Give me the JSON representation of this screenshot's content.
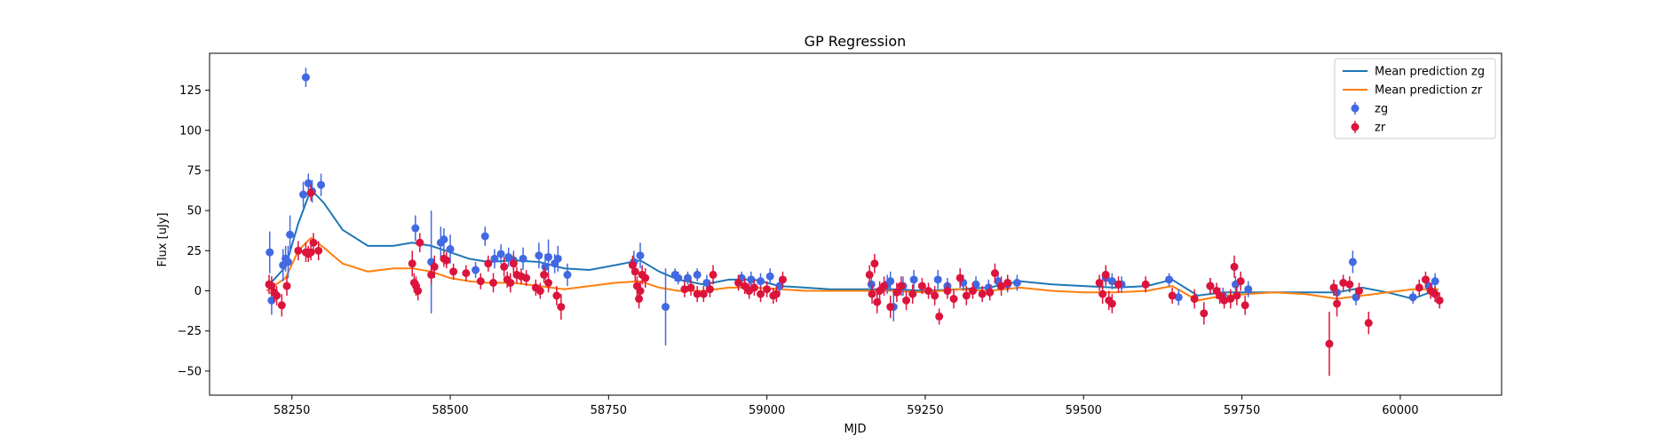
{
  "chart_data": {
    "type": "scatter",
    "title": "GP Regression",
    "xlabel": "MJD",
    "ylabel": "Flux [uJy]",
    "xlim": [
      58120,
      60160
    ],
    "ylim": [
      -65,
      148
    ],
    "xticks": [
      58250,
      58500,
      58750,
      59000,
      59250,
      59500,
      59750,
      60000
    ],
    "yticks": [
      -50,
      -25,
      0,
      25,
      50,
      75,
      100,
      125
    ],
    "grid": false,
    "legend_position": "top-right",
    "legend": [
      "Mean prediction zg",
      "Mean prediction zr",
      "zg",
      "zr"
    ],
    "colors": {
      "mean_zg": "#1f77b4",
      "mean_zr": "#ff7f0e",
      "zg": "#4169e1",
      "zr": "#dc143c"
    },
    "lines": [
      {
        "name": "Mean prediction zg",
        "x": [
          58210,
          58240,
          58260,
          58280,
          58300,
          58330,
          58370,
          58410,
          58440,
          58470,
          58500,
          58530,
          58560,
          58600,
          58640,
          58680,
          58720,
          58760,
          58800,
          58830,
          58860,
          58900,
          58940,
          58980,
          59020,
          59060,
          59100,
          59150,
          59200,
          59250,
          59300,
          59350,
          59400,
          59450,
          59500,
          59550,
          59600,
          59640,
          59680,
          59720,
          59760,
          59800,
          59850,
          59900,
          59940,
          59980,
          60020,
          60060
        ],
        "y": [
          2,
          15,
          42,
          63,
          55,
          38,
          28,
          28,
          30,
          28,
          24,
          20,
          18,
          19,
          18,
          14,
          13,
          16,
          19,
          12,
          7,
          4,
          7,
          7,
          3,
          2,
          1,
          1,
          1,
          0,
          1,
          2,
          6,
          4,
          3,
          2,
          3,
          7,
          -3,
          -1,
          -1,
          -1,
          -1,
          -1,
          2,
          -1,
          -5,
          1
        ]
      },
      {
        "name": "Mean prediction zr",
        "x": [
          58210,
          58240,
          58260,
          58280,
          58300,
          58330,
          58370,
          58410,
          58440,
          58470,
          58500,
          58530,
          58560,
          58600,
          58640,
          58680,
          58720,
          58760,
          58800,
          58830,
          58860,
          58900,
          58940,
          58980,
          59020,
          59060,
          59100,
          59150,
          59200,
          59250,
          59300,
          59350,
          59400,
          59450,
          59500,
          59550,
          59600,
          59640,
          59680,
          59720,
          59760,
          59800,
          59850,
          59900,
          59940,
          59980,
          60020,
          60060
        ],
        "y": [
          0,
          8,
          25,
          33,
          27,
          17,
          12,
          14,
          14,
          12,
          8,
          6,
          5,
          5,
          3,
          1,
          3,
          5,
          6,
          2,
          0,
          0,
          2,
          2,
          1,
          0,
          0,
          0,
          0,
          -1,
          1,
          0,
          2,
          0,
          -1,
          -1,
          0,
          3,
          -6,
          -3,
          -2,
          -1,
          -2,
          -5,
          -3,
          -1,
          1,
          1
        ]
      }
    ],
    "scatter": [
      {
        "name": "zg",
        "points": [
          [
            58215,
            24,
            13
          ],
          [
            58218,
            -6,
            9
          ],
          [
            58236,
            16,
            10
          ],
          [
            58240,
            20,
            8
          ],
          [
            58244,
            18,
            10
          ],
          [
            58247,
            35,
            12
          ],
          [
            58268,
            60,
            8
          ],
          [
            58272,
            133,
            6
          ],
          [
            58276,
            67,
            6
          ],
          [
            58282,
            62,
            7
          ],
          [
            58296,
            66,
            7
          ],
          [
            58445,
            39,
            8
          ],
          [
            58470,
            18,
            32
          ],
          [
            58485,
            30,
            10
          ],
          [
            58490,
            32,
            7
          ],
          [
            58500,
            26,
            9
          ],
          [
            58540,
            13,
            5
          ],
          [
            58555,
            34,
            6
          ],
          [
            58570,
            20,
            6
          ],
          [
            58580,
            23,
            6
          ],
          [
            58592,
            21,
            6
          ],
          [
            58600,
            19,
            6
          ],
          [
            58615,
            20,
            7
          ],
          [
            58640,
            22,
            8
          ],
          [
            58650,
            15,
            8
          ],
          [
            58655,
            21,
            11
          ],
          [
            58665,
            17,
            6
          ],
          [
            58670,
            20,
            8
          ],
          [
            58685,
            10,
            7
          ],
          [
            58790,
            18,
            7
          ],
          [
            58800,
            22,
            8
          ],
          [
            58840,
            -10,
            24
          ],
          [
            58855,
            10,
            4
          ],
          [
            58860,
            8,
            4
          ],
          [
            58875,
            8,
            4
          ],
          [
            58890,
            10,
            4
          ],
          [
            58905,
            5,
            5
          ],
          [
            58960,
            8,
            4
          ],
          [
            58975,
            7,
            5
          ],
          [
            58990,
            6,
            5
          ],
          [
            59005,
            9,
            5
          ],
          [
            59020,
            3,
            5
          ],
          [
            59165,
            4,
            5
          ],
          [
            59190,
            4,
            6
          ],
          [
            59195,
            6,
            6
          ],
          [
            59200,
            -10,
            9
          ],
          [
            59215,
            3,
            6
          ],
          [
            59232,
            7,
            6
          ],
          [
            59270,
            7,
            6
          ],
          [
            59285,
            3,
            5
          ],
          [
            59310,
            5,
            5
          ],
          [
            59330,
            4,
            5
          ],
          [
            59350,
            2,
            5
          ],
          [
            59365,
            6,
            5
          ],
          [
            59380,
            4,
            5
          ],
          [
            59395,
            5,
            5
          ],
          [
            59535,
            8,
            5
          ],
          [
            59545,
            6,
            5
          ],
          [
            59560,
            4,
            5
          ],
          [
            59635,
            7,
            4
          ],
          [
            59650,
            -4,
            5
          ],
          [
            59700,
            3,
            5
          ],
          [
            59720,
            -3,
            5
          ],
          [
            59740,
            4,
            5
          ],
          [
            59760,
            1,
            5
          ],
          [
            59900,
            -1,
            5
          ],
          [
            59925,
            18,
            7
          ],
          [
            59930,
            -4,
            5
          ],
          [
            60020,
            -4,
            4
          ],
          [
            60045,
            3,
            5
          ],
          [
            60055,
            6,
            5
          ]
        ]
      },
      {
        "name": "zr",
        "points": [
          [
            58214,
            4,
            6
          ],
          [
            58218,
            3,
            6
          ],
          [
            58222,
            -1,
            6
          ],
          [
            58226,
            -3,
            6
          ],
          [
            58234,
            -9,
            7
          ],
          [
            58242,
            3,
            6
          ],
          [
            58260,
            25,
            6
          ],
          [
            58272,
            24,
            6
          ],
          [
            58276,
            23,
            5
          ],
          [
            58280,
            24,
            5
          ],
          [
            58284,
            30,
            6
          ],
          [
            58292,
            25,
            6
          ],
          [
            58280,
            61,
            5
          ],
          [
            58440,
            17,
            8
          ],
          [
            58443,
            5,
            6
          ],
          [
            58446,
            3,
            6
          ],
          [
            58449,
            0,
            6
          ],
          [
            58452,
            30,
            6
          ],
          [
            58470,
            10,
            6
          ],
          [
            58475,
            15,
            7
          ],
          [
            58490,
            20,
            5
          ],
          [
            58494,
            19,
            5
          ],
          [
            58505,
            12,
            5
          ],
          [
            58525,
            11,
            5
          ],
          [
            58548,
            6,
            5
          ],
          [
            58560,
            17,
            5
          ],
          [
            58568,
            5,
            6
          ],
          [
            58585,
            15,
            6
          ],
          [
            58590,
            7,
            5
          ],
          [
            58595,
            5,
            6
          ],
          [
            58600,
            17,
            6
          ],
          [
            58605,
            10,
            5
          ],
          [
            58612,
            9,
            5
          ],
          [
            58620,
            8,
            5
          ],
          [
            58635,
            2,
            5
          ],
          [
            58642,
            0,
            5
          ],
          [
            58648,
            10,
            5
          ],
          [
            58655,
            5,
            6
          ],
          [
            58668,
            -3,
            6
          ],
          [
            58675,
            -10,
            8
          ],
          [
            58788,
            16,
            6
          ],
          [
            58792,
            12,
            6
          ],
          [
            58795,
            3,
            6
          ],
          [
            58798,
            -5,
            6
          ],
          [
            58800,
            0,
            6
          ],
          [
            58803,
            10,
            6
          ],
          [
            58808,
            8,
            6
          ],
          [
            58870,
            1,
            5
          ],
          [
            58880,
            2,
            5
          ],
          [
            58890,
            -2,
            5
          ],
          [
            58900,
            -2,
            5
          ],
          [
            58910,
            1,
            5
          ],
          [
            58915,
            10,
            6
          ],
          [
            58955,
            5,
            5
          ],
          [
            58965,
            3,
            5
          ],
          [
            58972,
            0,
            5
          ],
          [
            58980,
            2,
            5
          ],
          [
            58990,
            -2,
            5
          ],
          [
            59000,
            1,
            5
          ],
          [
            59010,
            -3,
            5
          ],
          [
            59015,
            -2,
            5
          ],
          [
            59025,
            7,
            5
          ],
          [
            59162,
            10,
            6
          ],
          [
            59166,
            -2,
            6
          ],
          [
            59170,
            17,
            6
          ],
          [
            59174,
            -7,
            7
          ],
          [
            59178,
            0,
            6
          ],
          [
            59185,
            3,
            6
          ],
          [
            59195,
            -10,
            7
          ],
          [
            59205,
            -1,
            6
          ],
          [
            59212,
            3,
            6
          ],
          [
            59220,
            -6,
            6
          ],
          [
            59230,
            -2,
            6
          ],
          [
            59245,
            3,
            5
          ],
          [
            59255,
            0,
            5
          ],
          [
            59265,
            -3,
            6
          ],
          [
            59272,
            -16,
            5
          ],
          [
            59285,
            0,
            5
          ],
          [
            59295,
            -5,
            6
          ],
          [
            59305,
            8,
            6
          ],
          [
            59315,
            -3,
            6
          ],
          [
            59325,
            0,
            5
          ],
          [
            59340,
            -2,
            5
          ],
          [
            59352,
            -1,
            5
          ],
          [
            59360,
            11,
            6
          ],
          [
            59370,
            3,
            6
          ],
          [
            59380,
            5,
            5
          ],
          [
            59525,
            5,
            5
          ],
          [
            59530,
            -2,
            6
          ],
          [
            59535,
            10,
            6
          ],
          [
            59540,
            -6,
            6
          ],
          [
            59545,
            -8,
            6
          ],
          [
            59555,
            4,
            5
          ],
          [
            59598,
            4,
            5
          ],
          [
            59640,
            -3,
            5
          ],
          [
            59675,
            -5,
            6
          ],
          [
            59690,
            -14,
            7
          ],
          [
            59700,
            3,
            5
          ],
          [
            59710,
            0,
            5
          ],
          [
            59715,
            -3,
            5
          ],
          [
            59722,
            -6,
            5
          ],
          [
            59732,
            -5,
            6
          ],
          [
            59738,
            15,
            7
          ],
          [
            59742,
            -3,
            6
          ],
          [
            59748,
            6,
            6
          ],
          [
            59755,
            -9,
            6
          ],
          [
            59888,
            -33,
            20
          ],
          [
            59895,
            2,
            5
          ],
          [
            59900,
            -8,
            8
          ],
          [
            59910,
            5,
            5
          ],
          [
            59920,
            4,
            5
          ],
          [
            59935,
            0,
            5
          ],
          [
            59950,
            -20,
            7
          ],
          [
            60030,
            2,
            5
          ],
          [
            60040,
            7,
            5
          ],
          [
            60048,
            0,
            5
          ],
          [
            60055,
            -2,
            5
          ],
          [
            60062,
            -6,
            5
          ]
        ]
      }
    ]
  }
}
